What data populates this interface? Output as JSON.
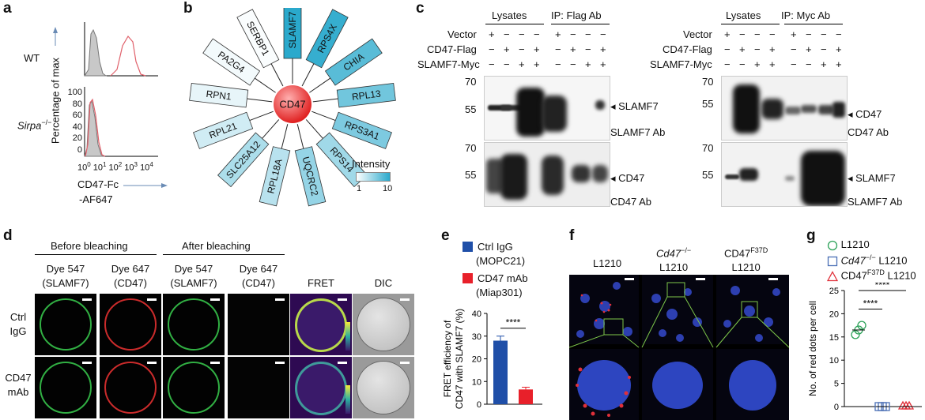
{
  "panel_letters": {
    "a": "a",
    "b": "b",
    "c": "c",
    "d": "d",
    "e": "e",
    "f": "f",
    "g": "g"
  },
  "panel_a": {
    "row1": "WT",
    "row2_main": "Sirpa",
    "row2_sup": "−/−",
    "ylabel": "Percentage of max",
    "ticks_y": [
      "0",
      "20",
      "40",
      "60",
      "80",
      "100"
    ],
    "ticks_x": [
      "10",
      "0",
      "10",
      "1",
      "10",
      "2",
      "10",
      "3",
      "10",
      "4"
    ],
    "xlabel_1": "CD47-Fc",
    "xlabel_2": "-AF647"
  },
  "panel_b": {
    "center": "CD47",
    "proteins": [
      "SLAMF7",
      "RPS4X",
      "CHIA",
      "RPL13",
      "RPS3A1",
      "RPS14",
      "UQCRC2",
      "RPL18A",
      "SLC25A12",
      "RPL21",
      "RPN1",
      "PA2G4",
      "SERBP1"
    ],
    "intensity_values": [
      10,
      9.5,
      8,
      7,
      6.5,
      5,
      5.5,
      4,
      4.5,
      3,
      2,
      1.5,
      1.2
    ],
    "legend_title": "Intensity",
    "legend_min": "1",
    "legend_max": "10",
    "colors": {
      "low": "#ffffff",
      "high": "#2aa9cc"
    }
  },
  "panel_c": {
    "left": {
      "group1": "Lysates",
      "group2": "IP: Flag Ab",
      "top_marker": "SLAMF7",
      "top_ab": "SLAMF7 Ab",
      "bot_marker": "CD47",
      "bot_ab": "CD47 Ab"
    },
    "right": {
      "group1": "Lysates",
      "group2": "IP: Myc Ab",
      "top_marker": "CD47",
      "top_ab": "CD47 Ab",
      "bot_marker": "SLAMF7",
      "bot_ab": "SLAMF7 Ab"
    },
    "rows": [
      "Vector",
      "CD47-Flag",
      "SLAMF7-Myc"
    ],
    "signs": [
      [
        "+",
        "−",
        "−",
        "−",
        "+",
        "−",
        "−",
        "−"
      ],
      [
        "−",
        "+",
        "−",
        "+",
        "−",
        "+",
        "−",
        "+"
      ],
      [
        "−",
        "−",
        "+",
        "+",
        "−",
        "−",
        "+",
        "+"
      ]
    ],
    "mw": [
      "70",
      "55",
      "70",
      "55"
    ]
  },
  "panel_d": {
    "before": "Before bleaching",
    "after": "After bleaching",
    "cols": [
      [
        "Dye 547",
        "(SLAMF7)"
      ],
      [
        "Dye 647",
        "(CD47)"
      ],
      [
        "Dye 547",
        "(SLAMF7)"
      ],
      [
        "Dye 647",
        "(CD47)"
      ],
      [
        "FRET",
        ""
      ],
      [
        "DIC",
        ""
      ]
    ],
    "rows": [
      [
        "Ctrl",
        "IgG"
      ],
      [
        "CD47",
        "mAb"
      ]
    ]
  },
  "panel_e": {
    "legend": [
      {
        "name": "Ctrl IgG",
        "sub": "(MOPC21)",
        "color": "#1f4fa8"
      },
      {
        "name": "CD47 mAb",
        "sub": "(Miap301)",
        "color": "#e8202a"
      }
    ],
    "ylabel_1": "FRET efficiency of",
    "ylabel_2": "CD47 with SLAMF7 (%)",
    "yticks": [
      "0",
      "10",
      "20",
      "30",
      "40"
    ],
    "sig": "****"
  },
  "panel_f": {
    "col1": "L1210",
    "col2_main": "Cd47",
    "col2_sup": "−/−",
    "col2_line2": "L1210",
    "col3_main": "CD47",
    "col3_sup": "F37D",
    "col3_line2": "L1210"
  },
  "panel_g": {
    "legend": [
      {
        "pre": "",
        "sup": "",
        "main": "L1210",
        "color": "#2ea35a",
        "marker": "circle"
      },
      {
        "pre": "Cd47",
        "sup": "−/−",
        "main": " L1210",
        "color": "#4a6fb5",
        "marker": "square"
      },
      {
        "pre": "CD47",
        "sup": "F37D",
        "main": " L1210",
        "color": "#e0303a",
        "marker": "triangle"
      }
    ],
    "ylabel": "No. of red dots per cell",
    "yticks": [
      "0",
      "5",
      "10",
      "15",
      "20",
      "25"
    ],
    "sig1": "****",
    "sig2": "****"
  },
  "chart_data": [
    {
      "type": "bar",
      "categories": [
        "Ctrl IgG (MOPC21)",
        "CD47 mAb (Miap301)"
      ],
      "values": [
        28,
        6.5
      ],
      "errors": [
        2,
        1
      ],
      "ylabel": "FRET efficiency of CD47 with SLAMF7 (%)",
      "ylim": [
        0,
        40
      ]
    },
    {
      "type": "scatter",
      "categories": [
        "L1210",
        "Cd47−/− L1210",
        "CD47F37D L1210"
      ],
      "series": [
        {
          "name": "L1210",
          "values": [
            15.5,
            16.5,
            17.5
          ]
        },
        {
          "name": "Cd47−/− L1210",
          "values": [
            0,
            0,
            0
          ]
        },
        {
          "name": "CD47F37D L1210",
          "values": [
            0,
            0,
            0
          ]
        }
      ],
      "ylabel": "No. of red dots per cell",
      "ylim": [
        0,
        25
      ]
    }
  ]
}
